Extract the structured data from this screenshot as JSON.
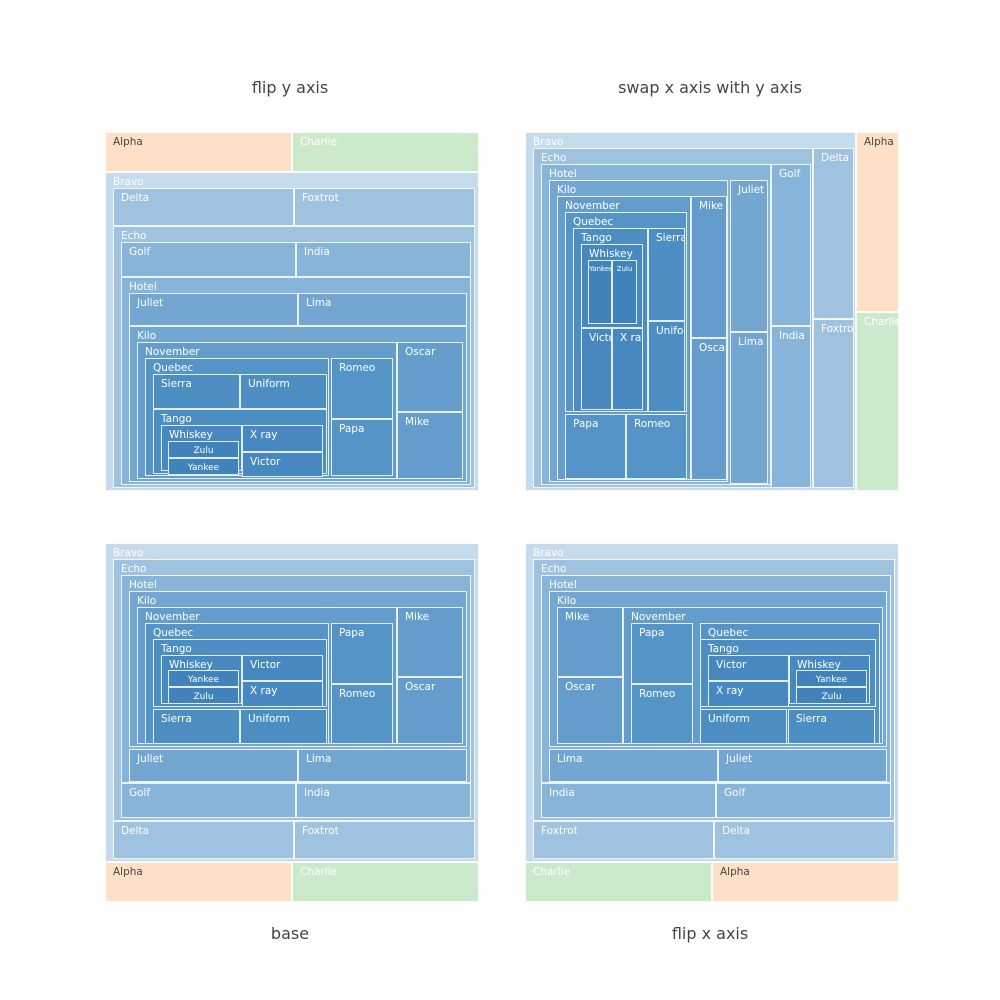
{
  "chart_data": [
    {
      "type": "treemap",
      "title": "flip y axis",
      "title_position": "top",
      "flip": "y",
      "root": "root",
      "nodes": [
        {
          "label": "Alpha",
          "parent": "root"
        },
        {
          "label": "Charlie",
          "parent": "root"
        },
        {
          "label": "Bravo",
          "parent": "root"
        },
        {
          "label": "Delta",
          "parent": "Bravo"
        },
        {
          "label": "Foxtrot",
          "parent": "Bravo"
        },
        {
          "label": "Echo",
          "parent": "Bravo"
        },
        {
          "label": "Golf",
          "parent": "Echo"
        },
        {
          "label": "India",
          "parent": "Echo"
        },
        {
          "label": "Hotel",
          "parent": "Echo"
        },
        {
          "label": "Juliet",
          "parent": "Hotel"
        },
        {
          "label": "Lima",
          "parent": "Hotel"
        },
        {
          "label": "Kilo",
          "parent": "Hotel"
        },
        {
          "label": "November",
          "parent": "Kilo"
        },
        {
          "label": "Oscar",
          "parent": "Kilo"
        },
        {
          "label": "Mike",
          "parent": "Kilo"
        },
        {
          "label": "Quebec",
          "parent": "November"
        },
        {
          "label": "Romeo",
          "parent": "November"
        },
        {
          "label": "Papa",
          "parent": "November"
        },
        {
          "label": "Sierra",
          "parent": "Quebec"
        },
        {
          "label": "Uniform",
          "parent": "Quebec"
        },
        {
          "label": "Tango",
          "parent": "Quebec"
        },
        {
          "label": "Whiskey",
          "parent": "Tango"
        },
        {
          "label": "X ray",
          "parent": "Tango"
        },
        {
          "label": "Victor",
          "parent": "Tango"
        },
        {
          "label": "Zulu",
          "parent": "Whiskey"
        },
        {
          "label": "Yankee",
          "parent": "Whiskey"
        }
      ]
    },
    {
      "type": "treemap",
      "title": "swap x axis with y axis",
      "title_position": "top",
      "flip": "swap-xy",
      "root": "root",
      "nodes": [
        {
          "label": "Bravo",
          "parent": "root"
        },
        {
          "label": "Alpha",
          "parent": "root"
        },
        {
          "label": "Charlie",
          "parent": "root"
        },
        {
          "label": "Echo",
          "parent": "Bravo"
        },
        {
          "label": "Delta",
          "parent": "Bravo"
        },
        {
          "label": "Foxtrot",
          "parent": "Bravo"
        },
        {
          "label": "Hotel",
          "parent": "Echo"
        },
        {
          "label": "Golf",
          "parent": "Echo"
        },
        {
          "label": "India",
          "parent": "Echo"
        },
        {
          "label": "Kilo",
          "parent": "Hotel"
        },
        {
          "label": "Juliet",
          "parent": "Hotel"
        },
        {
          "label": "Lima",
          "parent": "Hotel"
        },
        {
          "label": "November",
          "parent": "Kilo"
        },
        {
          "label": "Mike",
          "parent": "Kilo"
        },
        {
          "label": "Oscar",
          "parent": "Kilo"
        },
        {
          "label": "Quebec",
          "parent": "November"
        },
        {
          "label": "Papa",
          "parent": "November"
        },
        {
          "label": "Romeo",
          "parent": "November"
        },
        {
          "label": "Tango",
          "parent": "Quebec"
        },
        {
          "label": "Sierra",
          "parent": "Quebec"
        },
        {
          "label": "Uniform",
          "parent": "Quebec"
        },
        {
          "label": "Whiskey",
          "parent": "Tango"
        },
        {
          "label": "Victor",
          "parent": "Tango"
        },
        {
          "label": "X ray",
          "parent": "Tango"
        },
        {
          "label": "Yankee",
          "parent": "Whiskey"
        },
        {
          "label": "Zulu",
          "parent": "Whiskey"
        }
      ]
    },
    {
      "type": "treemap",
      "title": "base",
      "title_position": "bottom",
      "flip": "none",
      "root": "root",
      "nodes": [
        {
          "label": "Bravo",
          "parent": "root"
        },
        {
          "label": "Alpha",
          "parent": "root"
        },
        {
          "label": "Charlie",
          "parent": "root"
        },
        {
          "label": "Echo",
          "parent": "Bravo"
        },
        {
          "label": "Delta",
          "parent": "Bravo"
        },
        {
          "label": "Foxtrot",
          "parent": "Bravo"
        },
        {
          "label": "Hotel",
          "parent": "Echo"
        },
        {
          "label": "Golf",
          "parent": "Echo"
        },
        {
          "label": "India",
          "parent": "Echo"
        },
        {
          "label": "Kilo",
          "parent": "Hotel"
        },
        {
          "label": "Juliet",
          "parent": "Hotel"
        },
        {
          "label": "Lima",
          "parent": "Hotel"
        },
        {
          "label": "November",
          "parent": "Kilo"
        },
        {
          "label": "Mike",
          "parent": "Kilo"
        },
        {
          "label": "Oscar",
          "parent": "Kilo"
        },
        {
          "label": "Quebec",
          "parent": "November"
        },
        {
          "label": "Papa",
          "parent": "November"
        },
        {
          "label": "Romeo",
          "parent": "November"
        },
        {
          "label": "Tango",
          "parent": "Quebec"
        },
        {
          "label": "Sierra",
          "parent": "Quebec"
        },
        {
          "label": "Uniform",
          "parent": "Quebec"
        },
        {
          "label": "Whiskey",
          "parent": "Tango"
        },
        {
          "label": "Victor",
          "parent": "Tango"
        },
        {
          "label": "X ray",
          "parent": "Tango"
        },
        {
          "label": "Yankee",
          "parent": "Whiskey"
        },
        {
          "label": "Zulu",
          "parent": "Whiskey"
        }
      ]
    },
    {
      "type": "treemap",
      "title": "flip x axis",
      "title_position": "bottom",
      "flip": "x",
      "root": "root",
      "nodes": [
        {
          "label": "Bravo",
          "parent": "root"
        },
        {
          "label": "Charlie",
          "parent": "root"
        },
        {
          "label": "Alpha",
          "parent": "root"
        },
        {
          "label": "Echo",
          "parent": "Bravo"
        },
        {
          "label": "Foxtrot",
          "parent": "Bravo"
        },
        {
          "label": "Delta",
          "parent": "Bravo"
        },
        {
          "label": "Hotel",
          "parent": "Echo"
        },
        {
          "label": "India",
          "parent": "Echo"
        },
        {
          "label": "Golf",
          "parent": "Echo"
        },
        {
          "label": "Kilo",
          "parent": "Hotel"
        },
        {
          "label": "Lima",
          "parent": "Hotel"
        },
        {
          "label": "Juliet",
          "parent": "Hotel"
        },
        {
          "label": "Mike",
          "parent": "Kilo"
        },
        {
          "label": "Oscar",
          "parent": "Kilo"
        },
        {
          "label": "November",
          "parent": "Kilo"
        },
        {
          "label": "Papa",
          "parent": "November"
        },
        {
          "label": "Romeo",
          "parent": "November"
        },
        {
          "label": "Quebec",
          "parent": "November"
        },
        {
          "label": "Tango",
          "parent": "Quebec"
        },
        {
          "label": "Uniform",
          "parent": "Quebec"
        },
        {
          "label": "Sierra",
          "parent": "Quebec"
        },
        {
          "label": "Victor",
          "parent": "Tango"
        },
        {
          "label": "X ray",
          "parent": "Tango"
        },
        {
          "label": "Whiskey",
          "parent": "Tango"
        },
        {
          "label": "Yankee",
          "parent": "Whiskey"
        },
        {
          "label": "Zulu",
          "parent": "Whiskey"
        }
      ]
    }
  ],
  "colors": {
    "Alpha": "#fee0c6",
    "Charlie": "#cde9cc",
    "depth_blues": [
      "#c6dbec",
      "#9fc2e0",
      "#87b4d9",
      "#73a7d2",
      "#649dcc",
      "#5594c6",
      "#4c8ec2",
      "#4688bf",
      "#4083bb",
      "#3b7fb8"
    ],
    "dark_text": "#444444",
    "light_text": "#ffffff"
  }
}
